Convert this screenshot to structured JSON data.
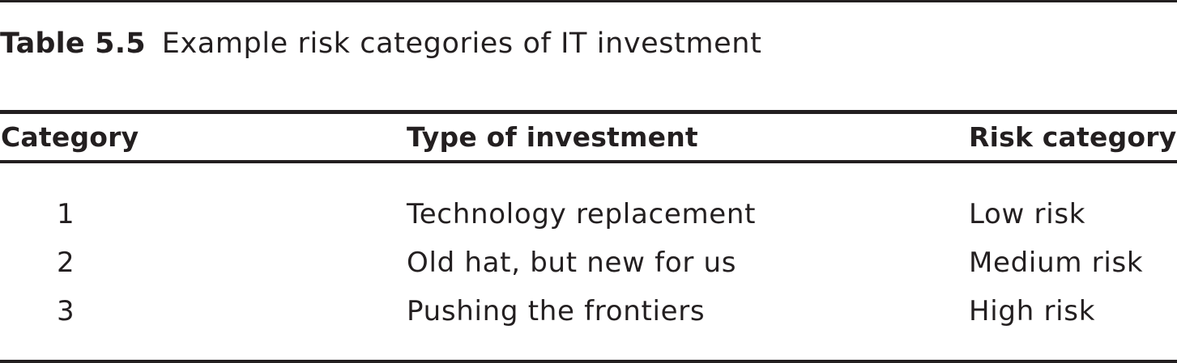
{
  "caption": {
    "label": "Table 5.5",
    "text": "Example risk categories of IT investment"
  },
  "table": {
    "headers": [
      "Category",
      "Type of investment",
      "Risk category"
    ],
    "rows": [
      {
        "category": "1",
        "type": "Technology replacement",
        "risk": "Low risk"
      },
      {
        "category": "2",
        "type": "Old hat, but new for us",
        "risk": "Medium risk"
      },
      {
        "category": "3",
        "type": "Pushing the frontiers",
        "risk": "High risk"
      }
    ]
  }
}
